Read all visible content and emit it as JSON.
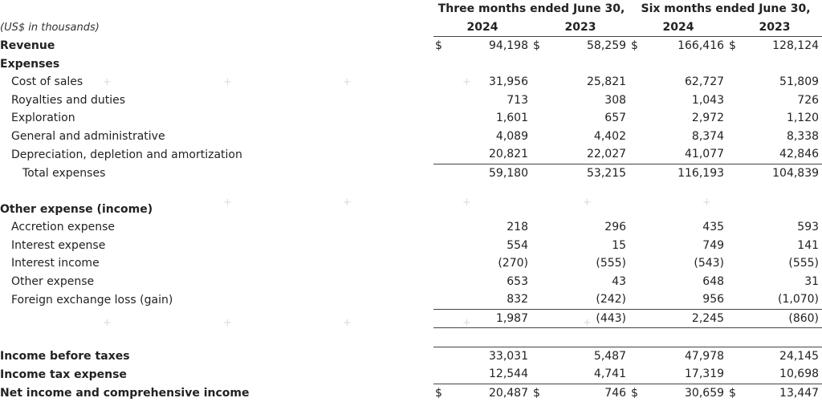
{
  "header": {
    "group1": "Three months ended June 30,",
    "group2": "Six months ended June 30,",
    "unit": "(US$ in thousands)",
    "years": [
      "2024",
      "2023",
      "2024",
      "2023"
    ]
  },
  "currency_symbol": "$",
  "rows": {
    "revenue": {
      "label": "Revenue",
      "values": [
        "94,198",
        "58,259",
        "166,416",
        "128,124"
      ]
    },
    "expenses": {
      "label": "Expenses"
    },
    "cost_of_sales": {
      "label": "Cost of sales",
      "values": [
        "31,956",
        "25,821",
        "62,727",
        "51,809"
      ]
    },
    "royalties": {
      "label": "Royalties and duties",
      "values": [
        "713",
        "308",
        "1,043",
        "726"
      ]
    },
    "exploration": {
      "label": "Exploration",
      "values": [
        "1,601",
        "657",
        "2,972",
        "1,120"
      ]
    },
    "g_and_a": {
      "label": "General and administrative",
      "values": [
        "4,089",
        "4,402",
        "8,374",
        "8,338"
      ]
    },
    "dda": {
      "label": "Depreciation, depletion and amortization",
      "values": [
        "20,821",
        "22,027",
        "41,077",
        "42,846"
      ]
    },
    "total_expenses": {
      "label": "Total expenses",
      "values": [
        "59,180",
        "53,215",
        "116,193",
        "104,839"
      ]
    },
    "other_header": {
      "label": "Other expense (income)"
    },
    "accretion": {
      "label": "Accretion expense",
      "values": [
        "218",
        "296",
        "435",
        "593"
      ]
    },
    "interest_expense": {
      "label": "Interest expense",
      "values": [
        "554",
        "15",
        "749",
        "141"
      ]
    },
    "interest_income": {
      "label": "Interest income",
      "values": [
        "(270)",
        "(555)",
        "(543)",
        "(555)"
      ]
    },
    "other_expense": {
      "label": "Other expense",
      "values": [
        "653",
        "43",
        "648",
        "31"
      ]
    },
    "fx_loss": {
      "label": "Foreign exchange loss (gain)",
      "values": [
        "832",
        "(242)",
        "956",
        "(1,070)"
      ]
    },
    "other_total": {
      "label": "",
      "values": [
        "1,987",
        "(443)",
        "2,245",
        "(860)"
      ]
    },
    "income_before_taxes": {
      "label": "Income before taxes",
      "values": [
        "33,031",
        "5,487",
        "47,978",
        "24,145"
      ]
    },
    "income_tax": {
      "label": "Income tax expense",
      "values": [
        "12,544",
        "4,741",
        "17,319",
        "10,698"
      ]
    },
    "net_income": {
      "label": "Net income and comprehensive income",
      "values": [
        "20,487",
        "746",
        "30,659",
        "13,447"
      ]
    }
  },
  "watermark_glyph": "+"
}
